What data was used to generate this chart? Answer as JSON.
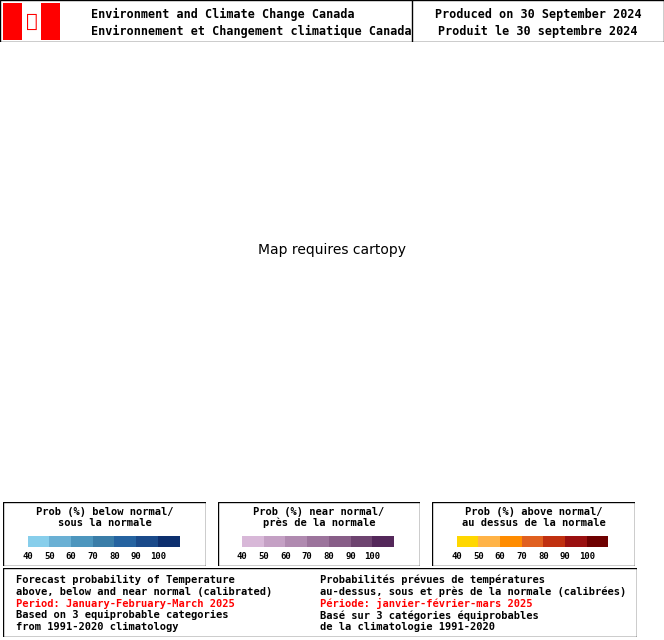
{
  "title_en": "Environment and Climate Change Canada",
  "title_fr": "Environnement et Changement climatique Canada",
  "produced_en": "Produced on 30 September 2024",
  "produced_fr": "Produit le 30 septembre 2024",
  "forecast_text_en_line1": "Forecast probability of Temperature",
  "forecast_text_en_line2": "above, below and near normal (calibrated)",
  "forecast_text_en_line3": "Period: January-February-March 2025",
  "forecast_text_en_line4": "Based on 3 equiprobable categories",
  "forecast_text_en_line5": "from 1991-2020 climatology",
  "forecast_text_fr_line1": "Probabilités prévues de températures",
  "forecast_text_fr_line2": "au-dessus, sous et près de la normale (calibrées)",
  "forecast_text_fr_line3": "Période: janvier-février-mars 2025",
  "forecast_text_fr_line4": "Basé sur 3 catégories équiprobables",
  "forecast_text_fr_line5": "de la climatologie 1991-2020",
  "colorbar_ticks": [
    40,
    50,
    60,
    70,
    80,
    90,
    100
  ],
  "below_normal_colors": [
    "#87CEEB",
    "#6ab0d4",
    "#4d96be",
    "#3a7da8",
    "#2563a0",
    "#1a4a8a",
    "#0d2f6e"
  ],
  "near_normal_colors": [
    "#d8b8d8",
    "#c4a0c4",
    "#b08ab0",
    "#9c749c",
    "#885e88",
    "#6e4470",
    "#54285a"
  ],
  "above_normal_colors": [
    "#ffd700",
    "#ffb347",
    "#ff8c00",
    "#e06020",
    "#c03010",
    "#9a1010",
    "#6e0000"
  ],
  "legend_below_label_en": "Prob (%) below normal/",
  "legend_below_label_fr": "sous la normale",
  "legend_near_label_en": "Prob (%) near normal/",
  "legend_near_label_fr": "près de la normale",
  "legend_above_label_en": "Prob (%) above normal/",
  "legend_above_label_fr": "au dessus de la normale",
  "background_color": "#ffffff",
  "map_background": "#ffffff",
  "ocean_color": "#ffffff",
  "border_color": "#000000"
}
